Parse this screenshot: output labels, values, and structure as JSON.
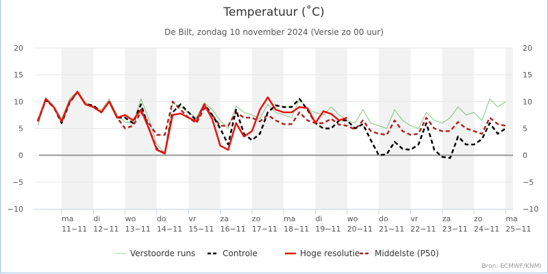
{
  "chart_data": {
    "type": "line",
    "title": "Temperatuur (˚C)",
    "subtitle": "De Bilt, zondag 10 november 2024 (Versie zo 00 uur)",
    "xlabel": "",
    "ylabel": "",
    "ylim": [
      -10,
      20
    ],
    "yticks": [
      -10,
      -5,
      0,
      5,
      10,
      15,
      20
    ],
    "y_axis_both_sides": true,
    "grid": true,
    "legend_position": "bottom-center",
    "x_unit": "hours since 10-11-2024 00:00",
    "x_range_hours": [
      0,
      370
    ],
    "time_step_hours": 6,
    "first_point_hours": 6,
    "x_ticks": [
      {
        "day": "ma",
        "date": "11-11",
        "hours": 24
      },
      {
        "day": "di",
        "date": "12-11",
        "hours": 48
      },
      {
        "day": "wo",
        "date": "13-11",
        "hours": 72
      },
      {
        "day": "do",
        "date": "14-11",
        "hours": 96
      },
      {
        "day": "vr",
        "date": "15-11",
        "hours": 120
      },
      {
        "day": "za",
        "date": "16-11",
        "hours": 144
      },
      {
        "day": "zo",
        "date": "17-11",
        "hours": 168
      },
      {
        "day": "ma",
        "date": "18-11",
        "hours": 192
      },
      {
        "day": "di",
        "date": "19-11",
        "hours": 216
      },
      {
        "day": "wo",
        "date": "20-11",
        "hours": 240
      },
      {
        "day": "do",
        "date": "21-11",
        "hours": 264
      },
      {
        "day": "vr",
        "date": "22-11",
        "hours": 288
      },
      {
        "day": "za",
        "date": "23-11",
        "hours": 312
      },
      {
        "day": "zo",
        "date": "24-11",
        "hours": 336
      },
      {
        "day": "ma",
        "date": "25-11",
        "hours": 360
      }
    ],
    "shaded_days_hours": [
      [
        24,
        48
      ],
      [
        72,
        96
      ],
      [
        120,
        144
      ],
      [
        168,
        192
      ],
      [
        216,
        240
      ],
      [
        264,
        288
      ],
      [
        312,
        336
      ],
      [
        360,
        370
      ]
    ],
    "series": [
      {
        "name": "Hoge resolutie",
        "color": "#e8120c",
        "style": "solid",
        "values": [
          6.3,
          10.5,
          9,
          6.3,
          10,
          11.8,
          9.5,
          9,
          8,
          10,
          7,
          7.5,
          6.5,
          8.5,
          5,
          1,
          0.3,
          7.5,
          7.8,
          7,
          6.3,
          9.5,
          6.7,
          1.8,
          1,
          6,
          3.5,
          4.5,
          8.5,
          10.8,
          8.5,
          8,
          8,
          9,
          8.8,
          6,
          8.2,
          7.7,
          6.5,
          7
        ]
      },
      {
        "name": "Controle",
        "color": "#000000",
        "style": "dashed",
        "values": [
          6.5,
          10.3,
          9,
          6,
          9.8,
          11.8,
          9.5,
          9.3,
          8,
          10,
          7,
          7,
          6,
          9.5,
          5,
          1.2,
          0.3,
          8,
          9.5,
          8,
          6.5,
          9.5,
          7.5,
          5,
          2,
          8.5,
          4,
          2.8,
          4,
          8,
          9.3,
          9,
          9,
          10.5,
          8.5,
          6,
          5,
          5,
          6.5,
          6.5,
          5,
          5.8,
          2.8,
          0,
          0.2,
          2.5,
          1.2,
          1,
          2,
          6,
          1,
          -0.3,
          -0.5,
          3.5,
          2,
          2,
          3,
          6,
          4,
          5
        ]
      },
      {
        "name": "Middelste (P50)",
        "color": "#b22222",
        "style": "dashed",
        "values": [
          6.3,
          10.3,
          9,
          6.3,
          10,
          11.8,
          9.5,
          9,
          8,
          10,
          7,
          5,
          5.5,
          8,
          6,
          3.8,
          3.8,
          10,
          8.5,
          7,
          6,
          8.8,
          7.5,
          5.5,
          5.5,
          8,
          7,
          7,
          6.3,
          7.5,
          6.5,
          5.8,
          5.8,
          8,
          6.5,
          6,
          6,
          6.8,
          5.7,
          5.5,
          4.8,
          6.5,
          4.5,
          4,
          3.8,
          6.5,
          4.5,
          3.8,
          4,
          7,
          5,
          4.5,
          4.5,
          6.2,
          5,
          4.5,
          4,
          7,
          5.8,
          5.5
        ]
      }
    ],
    "ensemble": {
      "name": "Verstoorde runs",
      "color": "#2e9e2e",
      "members": [
        [
          5.5,
          10.8,
          9.2,
          6.8,
          10.5,
          12,
          9.8,
          9.2,
          8.4,
          10.5,
          7.5,
          6.2,
          6,
          10.5,
          6.8,
          2,
          0.5,
          9.8,
          9,
          8,
          7,
          9.8,
          8.5,
          6.5,
          5,
          9.2,
          8,
          7.5,
          6.8,
          9.5,
          8,
          7.5,
          7,
          10.5,
          8.5,
          8,
          7.5,
          9,
          7.5,
          6.5,
          6,
          8.5,
          6,
          5.5,
          5,
          8.5,
          6.5,
          5.5,
          5,
          8,
          6.5,
          6,
          7,
          9,
          7.5,
          8,
          6.5,
          10.5,
          9,
          10
        ]
      ]
    }
  },
  "legend": {
    "items": [
      {
        "label": "Verstoorde runs",
        "color": "#9fd49f",
        "style": "solid"
      },
      {
        "label": "Controle",
        "color": "#000000",
        "style": "dashed"
      },
      {
        "label": "Hoge resolutie",
        "color": "#e8120c",
        "style": "solid"
      },
      {
        "label": "Middelste (P50)",
        "color": "#b22222",
        "style": "dashed"
      }
    ]
  },
  "credit": "Bron: ECMWF/KNMI"
}
